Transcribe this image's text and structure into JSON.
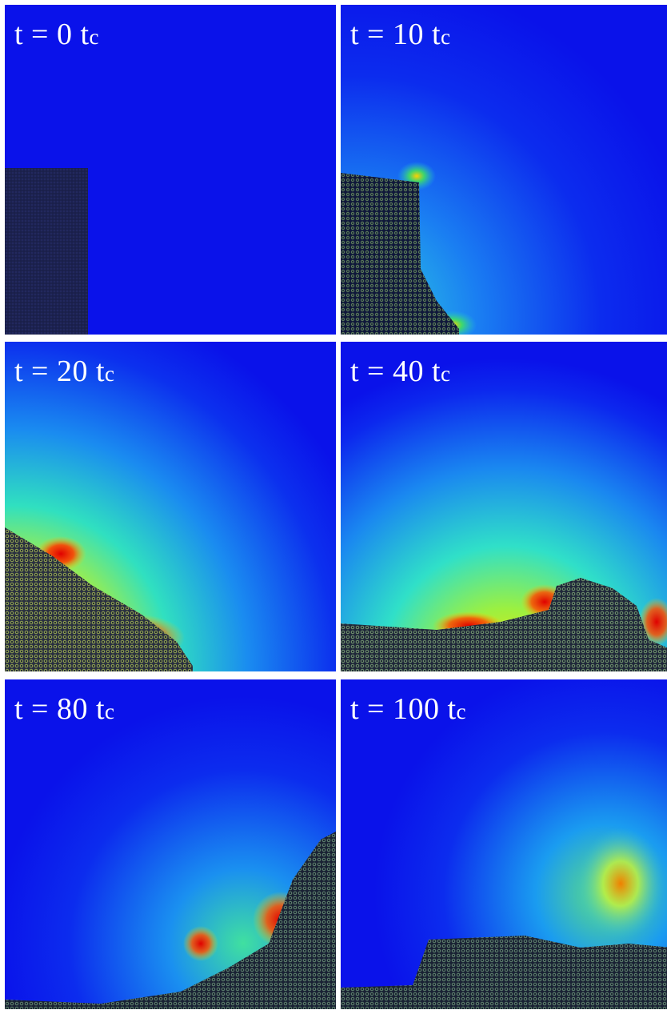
{
  "panels": [
    {
      "time": "t = 0 t",
      "sub": "c"
    },
    {
      "time": "t = 10 t",
      "sub": "c"
    },
    {
      "time": "t = 20 t",
      "sub": "c"
    },
    {
      "time": "t = 40 t",
      "sub": "c"
    },
    {
      "time": "t = 80 t",
      "sub": "c"
    },
    {
      "time": "t = 100 t",
      "sub": "c"
    }
  ]
}
